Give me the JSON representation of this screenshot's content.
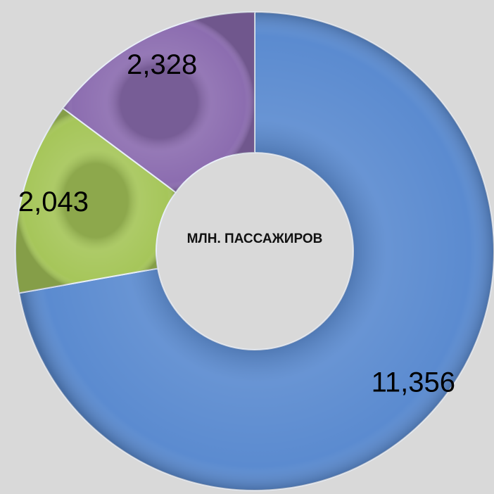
{
  "chart_data": {
    "type": "donut",
    "title": "МЛН. ПАССАЖИРОВ",
    "categories": [
      null,
      null,
      null
    ],
    "values": [
      11356,
      2043,
      2328
    ],
    "value_labels": [
      "11,356",
      "2,043",
      "2,328"
    ],
    "colors": [
      "#5b8bd0",
      "#a6c65a",
      "#8c6db0"
    ]
  }
}
